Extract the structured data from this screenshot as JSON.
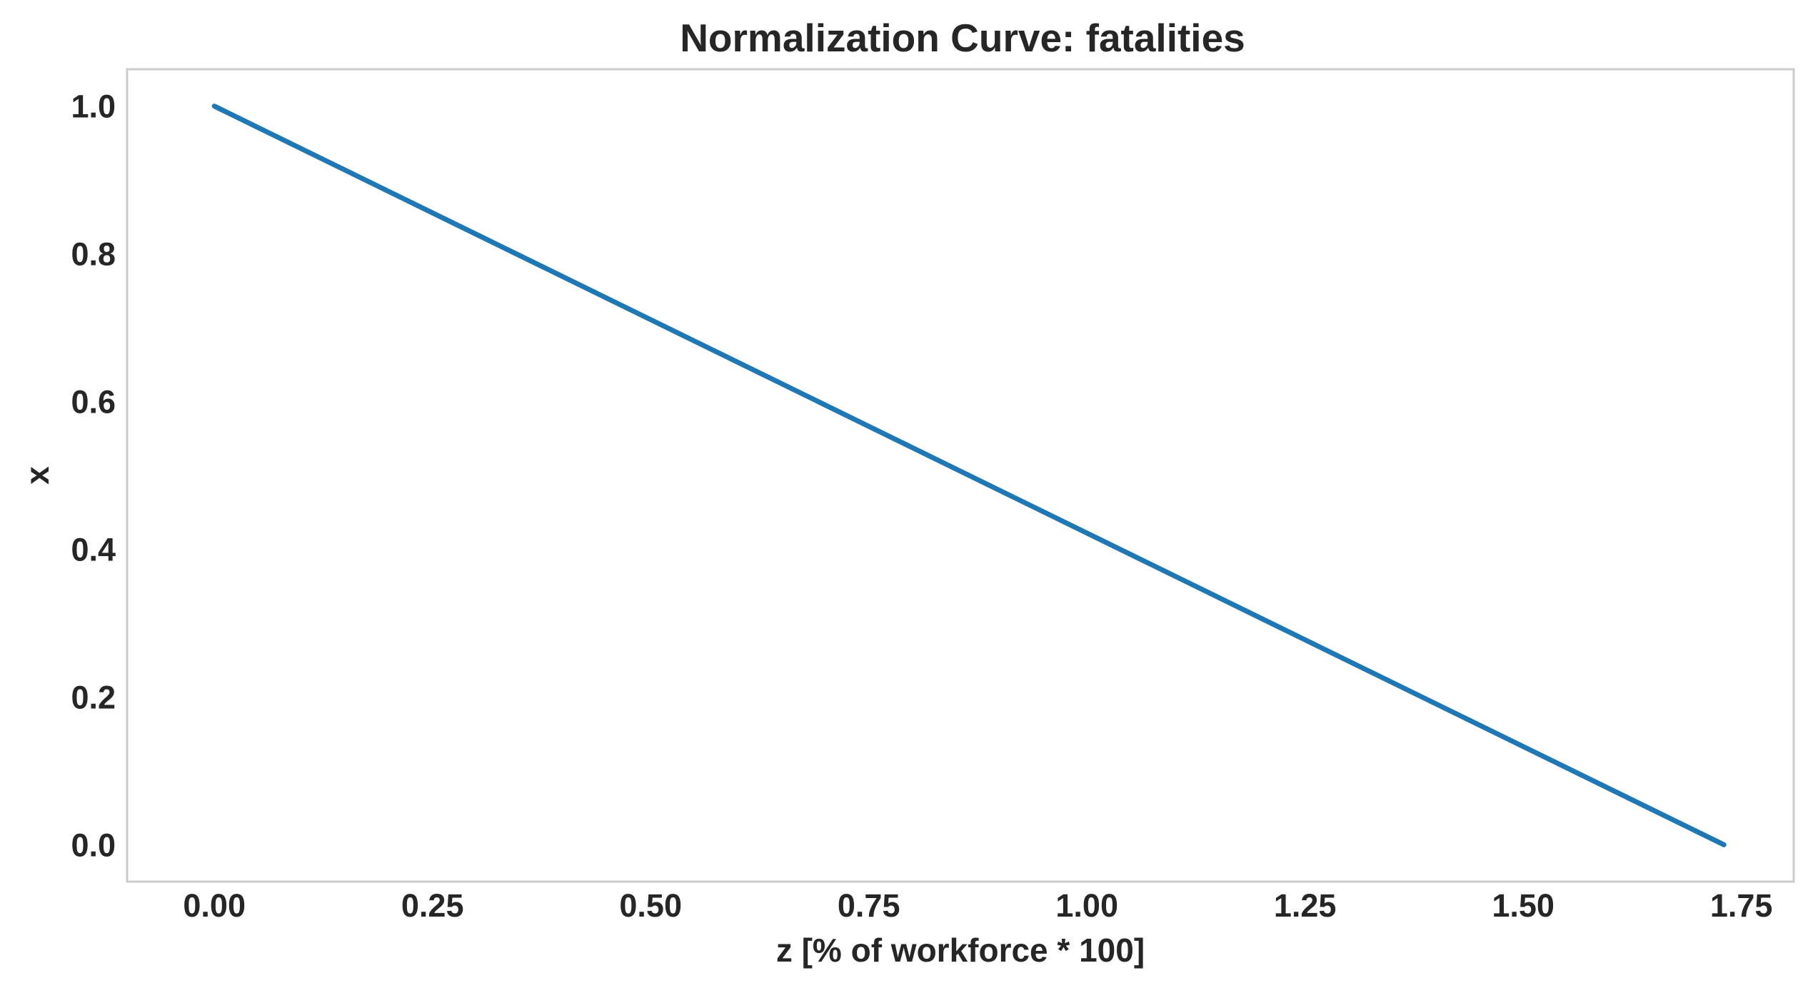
{
  "chart_data": {
    "type": "line",
    "title": "Normalization Curve: fatalities",
    "xlabel": "z [% of workforce * 100]",
    "ylabel": "x",
    "xlim": [
      -0.1,
      1.81
    ],
    "ylim": [
      -0.05,
      1.05
    ],
    "grid": false,
    "x_ticks": [
      0.0,
      0.25,
      0.5,
      0.75,
      1.0,
      1.25,
      1.5,
      1.75
    ],
    "x_tick_labels": [
      "0.00",
      "0.25",
      "0.50",
      "0.75",
      "1.00",
      "1.25",
      "1.50",
      "1.75"
    ],
    "y_ticks": [
      0.0,
      0.2,
      0.4,
      0.6,
      0.8,
      1.0
    ],
    "y_tick_labels": [
      "0.0",
      "0.2",
      "0.4",
      "0.6",
      "0.8",
      "1.0"
    ],
    "series": [
      {
        "color": "#1f77b4",
        "x": [
          0.0,
          1.73
        ],
        "y": [
          1.0,
          0.0
        ]
      }
    ]
  }
}
